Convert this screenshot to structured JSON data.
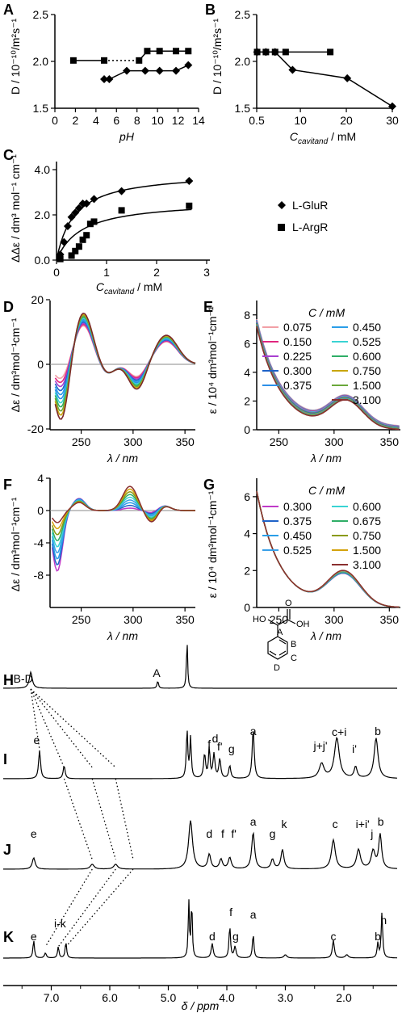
{
  "chart_data": [
    {
      "panel": "A",
      "type": "scatter",
      "ylabel": "D / 10⁻¹⁰/m²s⁻¹",
      "xlabel": "pH",
      "xlim": [
        0,
        14
      ],
      "ylim": [
        1.5,
        2.5
      ],
      "xticks": [
        "0",
        "2",
        "4",
        "6",
        "8",
        "10",
        "12",
        "14"
      ],
      "yticks": [
        "1.5",
        "2.0",
        "2.5"
      ],
      "series": [
        {
          "marker": "square",
          "x": [
            1.8,
            4.8,
            8.2,
            9.0,
            10.2,
            11.8,
            13.0
          ],
          "y": [
            2.01,
            2.01,
            2.01,
            2.11,
            2.11,
            2.11,
            2.11
          ]
        },
        {
          "marker": "diamond",
          "x": [
            4.8,
            5.3,
            7.0,
            8.8,
            10.2,
            11.8,
            13.0
          ],
          "y": [
            1.81,
            1.81,
            1.9,
            1.9,
            1.9,
            1.9,
            1.96
          ]
        }
      ]
    },
    {
      "panel": "B",
      "type": "scatter",
      "ylabel": "D / 10⁻¹⁰/m²s⁻¹",
      "xlabel": "C",
      "xlabel_sub": "cavitand",
      "xlabel_unit": " / mM",
      "xlim": [
        0.5,
        30
      ],
      "ylim": [
        1.5,
        2.5
      ],
      "xticks": [
        "0.5",
        "10",
        "20",
        "30"
      ],
      "yticks": [
        "1.5",
        "2.0",
        "2.5"
      ],
      "series": [
        {
          "marker": "square",
          "x": [
            0.6,
            2.5,
            4.5,
            6.8,
            16.5
          ],
          "y": [
            2.1,
            2.1,
            2.1,
            2.1,
            2.1
          ]
        },
        {
          "marker": "diamond",
          "x": [
            0.6,
            2.5,
            4.5,
            8.3,
            20.2,
            30
          ],
          "y": [
            2.1,
            2.1,
            2.1,
            1.91,
            1.82,
            1.52
          ]
        }
      ]
    },
    {
      "panel": "C",
      "type": "scatter",
      "ylabel": "ΔΔε / dm³ mol⁻¹ cm⁻¹",
      "xlabel": "C",
      "xlabel_sub": "cavitand",
      "xlabel_unit": " / mM",
      "xlim": [
        0,
        3
      ],
      "ylim": [
        0,
        4
      ],
      "xticks": [
        "0",
        "1",
        "2",
        "3"
      ],
      "yticks": [
        "0.0",
        "2.0",
        "4.0"
      ],
      "legend": [
        "L-GluR",
        "L-ArgR"
      ],
      "series": [
        {
          "name": "L-GluR",
          "marker": "diamond",
          "x": [
            0.075,
            0.15,
            0.225,
            0.3,
            0.375,
            0.45,
            0.525,
            0.6,
            0.75,
            1.3,
            2.65
          ],
          "y": [
            0.25,
            0.8,
            1.5,
            1.9,
            2.1,
            2.3,
            2.5,
            2.5,
            2.7,
            3.05,
            3.5
          ]
        },
        {
          "name": "L-ArgR",
          "marker": "square",
          "x": [
            0.075,
            0.3,
            0.375,
            0.45,
            0.525,
            0.6,
            0.675,
            0.75,
            1.3,
            2.65
          ],
          "y": [
            0.05,
            0.2,
            0.4,
            0.6,
            0.9,
            1.1,
            1.6,
            1.7,
            2.2,
            2.4
          ]
        }
      ]
    },
    {
      "panel": "D",
      "type": "line",
      "ylabel": "Δε / dm³mol⁻¹cm⁻¹",
      "xlabel": "λ / nm",
      "xlim": [
        220,
        360
      ],
      "ylim": [
        -20,
        20
      ],
      "xticks": [
        "250",
        "300",
        "350"
      ],
      "yticks": [
        "20",
        "0",
        "-20"
      ],
      "series_colors": [
        "#f2a0a6",
        "#e0267e",
        "#a83fd0",
        "#1f63c8",
        "#2a9ee8",
        "#2c8fe8",
        "#3ad3d3",
        "#2fae67",
        "#6aa83a",
        "#c8a60c",
        "#7a2a2a"
      ],
      "n_series": 11
    },
    {
      "panel": "E",
      "type": "line",
      "ylabel": "ε / 10⁴ dm³mol⁻¹cm⁻¹",
      "xlabel": "λ / nm",
      "xlim": [
        230,
        360
      ],
      "ylim": [
        0,
        9
      ],
      "xticks": [
        "250",
        "300",
        "350"
      ],
      "yticks": [
        "0",
        "2",
        "4",
        "6",
        "8"
      ],
      "legend_title": "C / mM",
      "legend": [
        {
          "label": "0.075",
          "color": "#f2a0a6"
        },
        {
          "label": "0.450",
          "color": "#2a9ee8"
        },
        {
          "label": "0.150",
          "color": "#e0267e"
        },
        {
          "label": "0.525",
          "color": "#3ad3d3"
        },
        {
          "label": "0.225",
          "color": "#a83fd0"
        },
        {
          "label": "0.600",
          "color": "#2fae67"
        },
        {
          "label": "0.300",
          "color": "#1f63c8"
        },
        {
          "label": "0.750",
          "color": "#c8a60c"
        },
        {
          "label": "0.375",
          "color": "#2c8fe8"
        },
        {
          "label": "1.500",
          "color": "#6aa83a"
        },
        {
          "label": "",
          "color": ""
        },
        {
          "label": "3.100",
          "color": "#8a2f2f"
        }
      ]
    },
    {
      "panel": "F",
      "type": "line",
      "ylabel": "Δε / dm³mol⁻¹cm⁻¹",
      "xlabel": "λ / nm",
      "xlim": [
        220,
        360
      ],
      "ylim": [
        -8,
        4
      ],
      "xticks": [
        "250",
        "300",
        "350"
      ],
      "yticks": [
        "4",
        "0",
        "-4",
        "-8"
      ]
    },
    {
      "panel": "G",
      "type": "line",
      "ylabel": "ε / 10⁴ dm³mol⁻¹cm⁻¹",
      "xlabel": "λ / nm",
      "xlim": [
        230,
        360
      ],
      "ylim": [
        0,
        7
      ],
      "xticks": [
        "250",
        "300",
        "350"
      ],
      "yticks": [
        "0",
        "2",
        "4",
        "6"
      ],
      "legend_title": "C / mM",
      "legend": [
        {
          "label": "0.300",
          "color": "#c03ac8"
        },
        {
          "label": "0.600",
          "color": "#3ad3d3"
        },
        {
          "label": "0.375",
          "color": "#1f63c8"
        },
        {
          "label": "0.675",
          "color": "#2fae67"
        },
        {
          "label": "0.450",
          "color": "#2a9ee8"
        },
        {
          "label": "0.750",
          "color": "#8a9a10"
        },
        {
          "label": "0.525",
          "color": "#3aa0e8"
        },
        {
          "label": "1.500",
          "color": "#d4a20c"
        },
        {
          "label": "",
          "color": ""
        },
        {
          "label": "3.100",
          "color": "#8a2f2f"
        }
      ]
    },
    {
      "panel": "NMR",
      "type": "line",
      "xlabel": "δ / ppm",
      "xlim": [
        7.6,
        1.2
      ],
      "xticks": [
        "7.0",
        "6.0",
        "5.0",
        "4.0",
        "3.0",
        "2.0"
      ],
      "spectra": [
        {
          "label": "H",
          "peaks": [
            "B-D",
            "A"
          ]
        },
        {
          "label": "I",
          "peaks": [
            "e",
            "f",
            "d",
            "f'",
            "g",
            "a",
            "j+j'",
            "c+i",
            "i'",
            "b"
          ]
        },
        {
          "label": "J",
          "peaks": [
            "e",
            "d",
            "f",
            "f'",
            "a",
            "g",
            "k",
            "c",
            "i+i'",
            "j",
            "b"
          ]
        },
        {
          "label": "K",
          "peaks": [
            "e",
            "i-k",
            "d",
            "f",
            "g",
            "a",
            "c",
            "b",
            "h"
          ]
        }
      ],
      "structure_labels": [
        "HO",
        "O",
        "OH",
        "A",
        "B",
        "C",
        "D"
      ]
    }
  ],
  "panel_labels": [
    "A",
    "B",
    "C",
    "D",
    "E",
    "F",
    "G",
    "H",
    "I",
    "J",
    "K"
  ]
}
